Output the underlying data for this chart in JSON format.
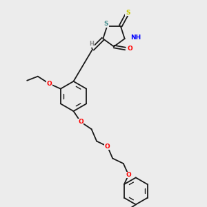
{
  "background_color": "#ececec",
  "bond_color": "#1a1a1a",
  "atom_colors": {
    "S_thioxo": "#cccc00",
    "S_thia": "#4a9090",
    "N": "#0000ff",
    "O": "#ff0000",
    "C": "#1a1a1a",
    "H": "#888888"
  },
  "figsize": [
    3.0,
    3.0
  ],
  "dpi": 100,
  "xlim": [
    0,
    10
  ],
  "ylim": [
    0,
    10
  ]
}
